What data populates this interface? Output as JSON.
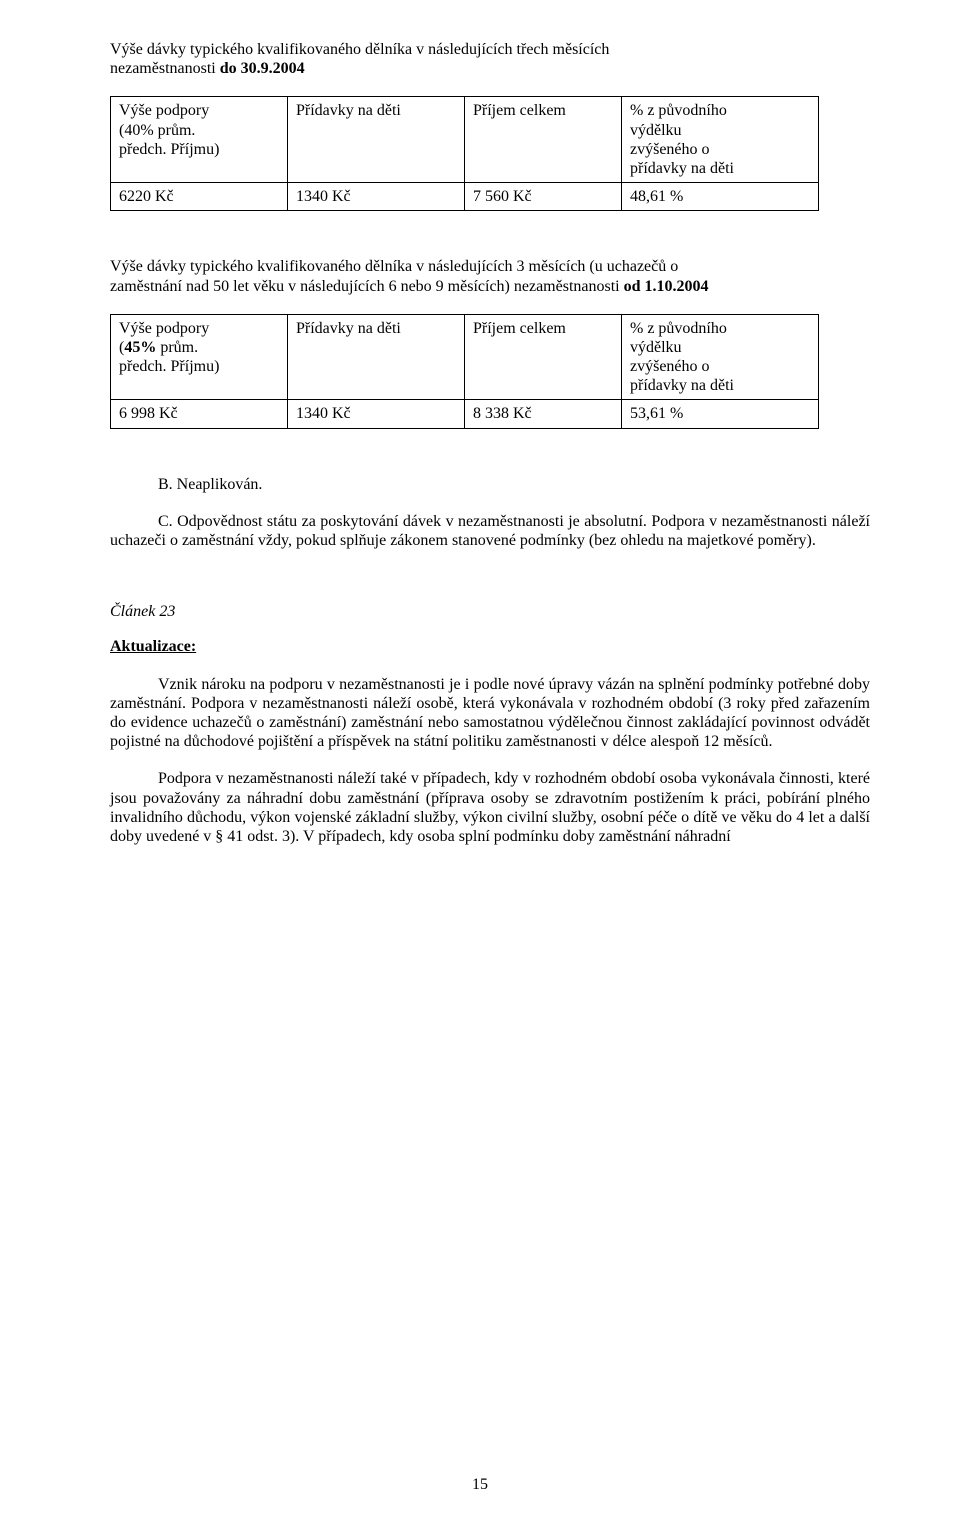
{
  "intro1": {
    "line1a": "Výše dávky typického kvalifikovaného dělníka v následujících třech měsících",
    "line1b": "nezaměstnanosti ",
    "line1c_bold": "do 30.9.2004"
  },
  "table1": {
    "r1c1_a": "Výše podpory",
    "r1c1_b": "(40% prům.",
    "r1c1_c": "předch. Příjmu)",
    "r1c2": "Přídavky na děti",
    "r1c3": "Příjem celkem",
    "r1c4_a": "% z původního",
    "r1c4_b": "výdělku",
    "r1c4_c": "zvýšeného o",
    "r1c4_d": "přídavky na děti",
    "r2c1": "6220 Kč",
    "r2c2": "1340 Kč",
    "r2c3": "7 560 Kč",
    "r2c4": "48,61 %"
  },
  "intro2": {
    "line1": "Výše dávky typického kvalifikovaného dělníka v následujících 3 měsících (u uchazečů o",
    "line2a": "zaměstnání nad 50 let věku v následujících 6 nebo 9 měsících) nezaměstnanosti ",
    "line2b_bold": "od  1.10.2004"
  },
  "table2": {
    "r1c1_a": "Výše podpory",
    "r1c1_b": "(",
    "r1c1_b_bold": "45%",
    "r1c1_b2": " prům.",
    "r1c1_c": "předch. Příjmu)",
    "r1c2": "Přídavky na děti",
    "r1c3": "Příjem celkem",
    "r1c4_a": "% z původního",
    "r1c4_b": "výdělku",
    "r1c4_c": "zvýšeného o",
    "r1c4_d": "přídavky na děti",
    "r2c1": "6 998 Kč",
    "r2c2": "1340 Kč",
    "r2c3": "8 338 Kč",
    "r2c4": "53,61 %"
  },
  "sectionB": "B. Neaplikován.",
  "sectionC": "C. Odpovědnost státu za poskytování dávek v nezaměstnanosti je absolutní. Podpora v nezaměstnanosti náleží uchazeči o zaměstnání vždy, pokud splňuje zákonem stanovené podmínky (bez ohledu na majetkové poměry).",
  "article": "Článek 23",
  "aktualizace": "Aktualizace:",
  "p1": "Vznik nároku na podporu v nezaměstnanosti je i podle nové úpravy vázán na splnění podmínky potřebné doby zaměstnání. Podpora v nezaměstnanosti náleží osobě, která vykonávala v rozhodném období (3 roky před zařazením do evidence uchazečů o zaměstnání) zaměstnání nebo samostatnou výdělečnou činnost zakládající povinnost odvádět pojistné na důchodové pojištění a příspěvek na státní politiku zaměstnanosti v délce alespoň 12 měsíců.",
  "p2": "Podpora v nezaměstnanosti náleží také v případech, kdy v rozhodném období osoba vykonávala činnosti, které jsou považovány za náhradní dobu zaměstnání  (příprava osoby se zdravotním postižením k práci, pobírání plného invalidního důchodu, výkon vojenské základní služby, výkon civilní služby, osobní péče o dítě ve věku do 4 let a další doby uvedené v § 41 odst. 3). V případech, kdy osoba splní podmínku doby zaměstnání náhradní",
  "pageNumber": "15"
}
